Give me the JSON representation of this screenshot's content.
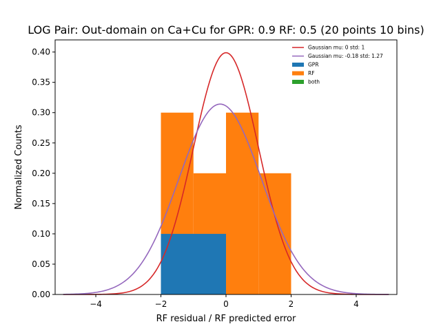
{
  "chart_data": {
    "type": "bar",
    "title": "LOG Pair: Out-domain on Ca+Cu for GPR: 0.9 RF: 0.5 (20 points 10 bins)",
    "xlabel": "RF residual / RF predicted error",
    "ylabel": "Normalized Counts",
    "xlim": [
      -5.25,
      5.25
    ],
    "ylim": [
      0,
      0.42
    ],
    "xticks": [
      -4,
      -2,
      0,
      2,
      4
    ],
    "xtick_labels": [
      "−4",
      "−2",
      "0",
      "2",
      "4"
    ],
    "yticks": [
      0.0,
      0.05,
      0.1,
      0.15,
      0.2,
      0.25,
      0.3,
      0.35,
      0.4
    ],
    "ytick_labels": [
      "0.00",
      "0.05",
      "0.10",
      "0.15",
      "0.20",
      "0.25",
      "0.30",
      "0.35",
      "0.40"
    ],
    "grid": false,
    "legend_position": "top-right",
    "histograms": [
      {
        "name": "GPR",
        "color": "#1f77b4",
        "bins": [
          {
            "x0": -2,
            "x1": 0,
            "value": 0.1
          }
        ]
      },
      {
        "name": "RF",
        "color": "#ff7f0e",
        "bins": [
          {
            "x0": -2,
            "x1": -1,
            "value": 0.3
          },
          {
            "x0": -1,
            "x1": 0,
            "value": 0.2
          },
          {
            "x0": 0,
            "x1": 1,
            "value": 0.3
          },
          {
            "x0": 1,
            "x1": 2,
            "value": 0.2
          }
        ]
      },
      {
        "name": "both",
        "color": "#2ca02c",
        "bins": []
      }
    ],
    "curves": [
      {
        "name": "Gaussian mu: 0 std: 1",
        "color": "#d62728",
        "mu": 0,
        "std": 1,
        "x_range": [
          -5,
          5
        ]
      },
      {
        "name": "Gaussian mu: -0.18 std: 1.27",
        "color": "#9467bd",
        "mu": -0.18,
        "std": 1.27,
        "x_range": [
          -5,
          5
        ]
      }
    ],
    "legend": [
      {
        "label": "Gaussian mu: 0 std: 1",
        "kind": "line",
        "color": "#d62728"
      },
      {
        "label": "Gaussian mu: -0.18 std: 1.27",
        "kind": "line",
        "color": "#9467bd"
      },
      {
        "label": "GPR",
        "kind": "patch",
        "color": "#1f77b4"
      },
      {
        "label": "RF",
        "kind": "patch",
        "color": "#ff7f0e"
      },
      {
        "label": "both",
        "kind": "patch",
        "color": "#2ca02c"
      }
    ]
  }
}
